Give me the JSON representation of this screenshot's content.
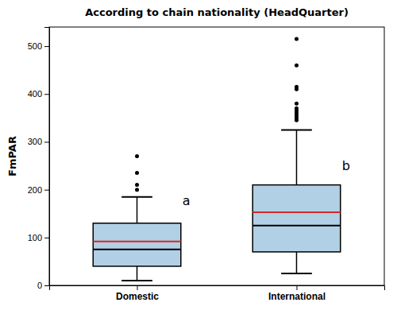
{
  "chart_data": {
    "type": "box",
    "title": "According to chain nationality (HeadQuarter)",
    "y_label": "FmPAR",
    "categories": [
      "Domestic",
      "International"
    ],
    "boxes": [
      {
        "q1": 40,
        "median": 75,
        "q3": 130,
        "mean": 92,
        "whisker_low": 10,
        "whisker_high": 185,
        "outliers": [
          200,
          210,
          235,
          270
        ]
      },
      {
        "q1": 70,
        "median": 125,
        "q3": 210,
        "mean": 153,
        "whisker_low": 25,
        "whisker_high": 325,
        "outliers": [
          345,
          350,
          355,
          360,
          365,
          370,
          380,
          410,
          415,
          460,
          515
        ]
      }
    ],
    "ylim": [
      0,
      540
    ],
    "yticks": [
      0,
      100,
      200,
      300,
      400,
      500
    ],
    "grid": false,
    "annotations": [
      {
        "text": "a",
        "y": 165
      },
      {
        "text": "b",
        "y": 238
      }
    ]
  }
}
